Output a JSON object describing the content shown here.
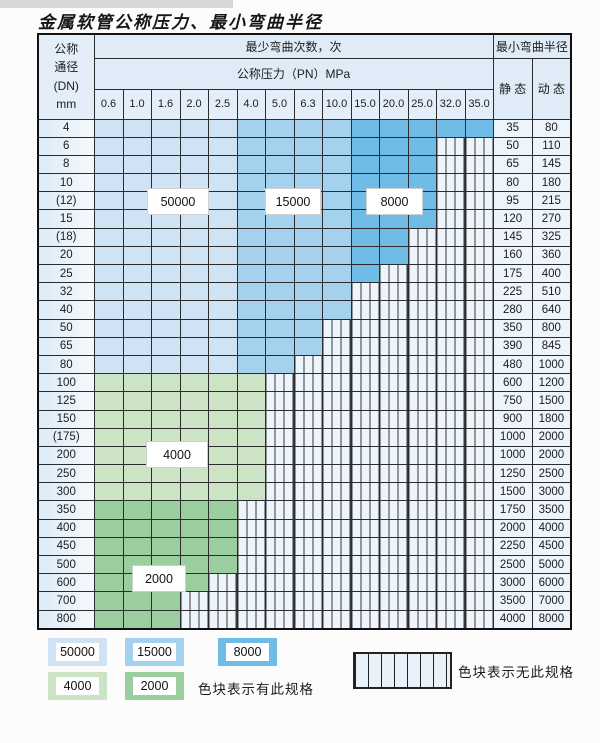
{
  "title": "金属软管公称压力、最小弯曲半径",
  "table": {
    "corner": {
      "line1": "公称",
      "line2": "通径",
      "line3": "(DN)",
      "line4": "mm"
    },
    "bend_cycles_header": "最少弯曲次数，次",
    "pressure_header": "公称压力（PN）MPa",
    "radius_header": "最小弯曲半径",
    "static_label": "静 态",
    "dynamic_label": "动 态",
    "pressure_columns": [
      "0.6",
      "1.0",
      "1.6",
      "2.0",
      "2.5",
      "4.0",
      "5.0",
      "6.3",
      "10.0",
      "15.0",
      "20.0",
      "25.0",
      "32.0",
      "35.0"
    ],
    "rows": [
      {
        "dn": "4",
        "colored": 14,
        "scheme": "blue",
        "static": "35",
        "dynamic": "80"
      },
      {
        "dn": "6",
        "colored": 12,
        "scheme": "blue",
        "static": "50",
        "dynamic": "110"
      },
      {
        "dn": "8",
        "colored": 12,
        "scheme": "blue",
        "static": "65",
        "dynamic": "145"
      },
      {
        "dn": "10",
        "colored": 12,
        "scheme": "blue",
        "static": "80",
        "dynamic": "180"
      },
      {
        "dn": "(12)",
        "colored": 12,
        "scheme": "blue",
        "static": "95",
        "dynamic": "215"
      },
      {
        "dn": "15",
        "colored": 12,
        "scheme": "blue",
        "static": "120",
        "dynamic": "270"
      },
      {
        "dn": "(18)",
        "colored": 11,
        "scheme": "blue",
        "static": "145",
        "dynamic": "325"
      },
      {
        "dn": "20",
        "colored": 11,
        "scheme": "blue",
        "static": "160",
        "dynamic": "360"
      },
      {
        "dn": "25",
        "colored": 10,
        "scheme": "blue",
        "static": "175",
        "dynamic": "400"
      },
      {
        "dn": "32",
        "colored": 9,
        "scheme": "blue",
        "static": "225",
        "dynamic": "510"
      },
      {
        "dn": "40",
        "colored": 9,
        "scheme": "blue",
        "static": "280",
        "dynamic": "640"
      },
      {
        "dn": "50",
        "colored": 8,
        "scheme": "blue",
        "static": "350",
        "dynamic": "800"
      },
      {
        "dn": "65",
        "colored": 8,
        "scheme": "blue",
        "static": "390",
        "dynamic": "845"
      },
      {
        "dn": "80",
        "colored": 7,
        "scheme": "blue",
        "static": "480",
        "dynamic": "1000"
      },
      {
        "dn": "100",
        "colored": 6,
        "scheme": "green4000",
        "static": "600",
        "dynamic": "1200"
      },
      {
        "dn": "125",
        "colored": 6,
        "scheme": "green4000",
        "static": "750",
        "dynamic": "1500"
      },
      {
        "dn": "150",
        "colored": 6,
        "scheme": "green4000",
        "static": "900",
        "dynamic": "1800"
      },
      {
        "dn": "(175)",
        "colored": 6,
        "scheme": "green4000",
        "static": "1000",
        "dynamic": "2000"
      },
      {
        "dn": "200",
        "colored": 6,
        "scheme": "green4000",
        "static": "1000",
        "dynamic": "2000"
      },
      {
        "dn": "250",
        "colored": 6,
        "scheme": "green4000",
        "static": "1250",
        "dynamic": "2500"
      },
      {
        "dn": "300",
        "colored": 6,
        "scheme": "green4000",
        "static": "1500",
        "dynamic": "3000"
      },
      {
        "dn": "350",
        "colored": 5,
        "scheme": "green2000",
        "static": "1750",
        "dynamic": "3500"
      },
      {
        "dn": "400",
        "colored": 5,
        "scheme": "green2000",
        "static": "2000",
        "dynamic": "4000"
      },
      {
        "dn": "450",
        "colored": 5,
        "scheme": "green2000",
        "static": "2250",
        "dynamic": "4500"
      },
      {
        "dn": "500",
        "colored": 5,
        "scheme": "green2000",
        "static": "2500",
        "dynamic": "5000"
      },
      {
        "dn": "600",
        "colored": 4,
        "scheme": "green2000",
        "static": "3000",
        "dynamic": "6000"
      },
      {
        "dn": "700",
        "colored": 3,
        "scheme": "green2000",
        "static": "3500",
        "dynamic": "7000"
      },
      {
        "dn": "800",
        "colored": 3,
        "scheme": "green2000",
        "static": "4000",
        "dynamic": "8000"
      }
    ]
  },
  "overlay_labels": {
    "l50000": "50000",
    "l15000": "15000",
    "l8000": "8000",
    "l4000": "4000",
    "l2000": "2000"
  },
  "legend": {
    "row1": [
      {
        "value": "50000",
        "color_key": "c50000"
      },
      {
        "value": "15000",
        "color_key": "c15000"
      },
      {
        "value": "8000",
        "color_key": "c8000"
      }
    ],
    "row2": [
      {
        "value": "4000",
        "color_key": "c4000"
      },
      {
        "value": "2000",
        "color_key": "c2000"
      }
    ],
    "has_spec_text": "色块表示有此规格",
    "no_spec_text": "色块表示无此规格"
  },
  "colors": {
    "c50000": "#cfe3f4",
    "c15000": "#a3d1ee",
    "c8000": "#6fbce7",
    "c4000": "#cde3c6",
    "c2000": "#9bce9f"
  }
}
